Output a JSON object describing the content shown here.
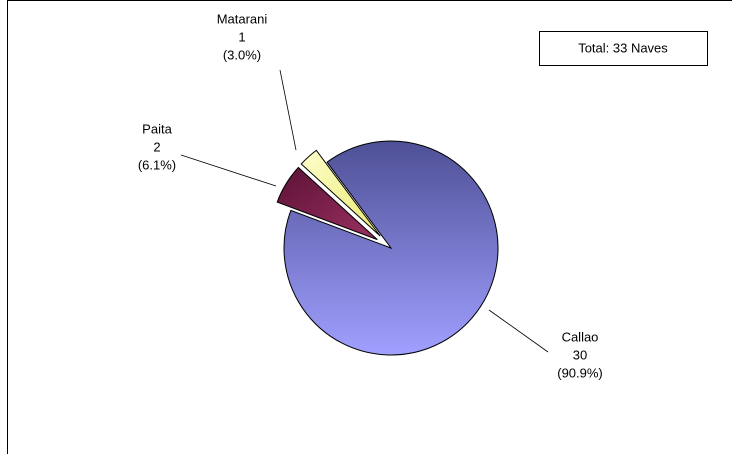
{
  "chart_data": {
    "type": "pie",
    "annotation": "Total: 33 Naves",
    "categories": [
      "Callao",
      "Paita",
      "Matarani"
    ],
    "values": [
      30,
      2,
      1
    ],
    "percent_labels": [
      "(90.9%)",
      "(6.1%)",
      "(3.0%)"
    ],
    "colors": [
      "#7c7ed8",
      "#7a1f4a",
      "#ffff99"
    ]
  }
}
